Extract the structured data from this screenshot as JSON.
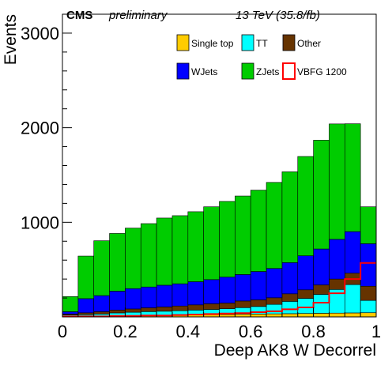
{
  "header": {
    "experiment": "CMS",
    "status": "preliminary",
    "energy_lumi": "13 TeV (35.8/fb)"
  },
  "chart_data": {
    "type": "bar",
    "stacked": true,
    "title": "",
    "xlabel": "Deep AK8 W Decorrel",
    "ylabel": "Events",
    "xlim": [
      0,
      1
    ],
    "ylim": [
      0,
      3200
    ],
    "x_ticks": [
      "0",
      "0.2",
      "0.4",
      "0.6",
      "0.8",
      "1"
    ],
    "y_ticks": [
      "1000",
      "2000",
      "3000"
    ],
    "bin_edges": [
      0,
      0.05,
      0.1,
      0.15,
      0.2,
      0.25,
      0.3,
      0.35,
      0.4,
      0.45,
      0.5,
      0.55,
      0.6,
      0.65,
      0.7,
      0.75,
      0.8,
      0.85,
      0.9,
      0.95,
      1.0
    ],
    "legend_placement": "top-right",
    "series": [
      {
        "name": "Single top",
        "color": "#ffcc00",
        "values": [
          5,
          8,
          10,
          12,
          14,
          16,
          18,
          20,
          22,
          24,
          26,
          28,
          30,
          32,
          34,
          36,
          38,
          40,
          42,
          44
        ]
      },
      {
        "name": "TT",
        "color": "#00ffff",
        "values": [
          15,
          15,
          20,
          30,
          35,
          40,
          42,
          45,
          50,
          55,
          60,
          70,
          80,
          100,
          130,
          160,
          200,
          250,
          300,
          130
        ]
      },
      {
        "name": "Other",
        "color": "#663300",
        "values": [
          10,
          20,
          25,
          30,
          35,
          40,
          45,
          50,
          55,
          60,
          60,
          70,
          70,
          70,
          80,
          90,
          100,
          110,
          120,
          150
        ]
      },
      {
        "name": "WJets",
        "color": "#0000ff",
        "values": [
          25,
          150,
          170,
          200,
          215,
          220,
          230,
          235,
          245,
          255,
          275,
          280,
          300,
          310,
          330,
          360,
          380,
          420,
          440,
          450
        ]
      },
      {
        "name": "ZJets",
        "color": "#00cc00",
        "values": [
          160,
          450,
          580,
          610,
          640,
          670,
          710,
          720,
          740,
          770,
          800,
          830,
          860,
          910,
          960,
          1050,
          1150,
          1220,
          1140,
          390
        ]
      }
    ],
    "signal": {
      "name": "VBFG 1200",
      "color": "#ff0000",
      "values": [
        5,
        5,
        5,
        10,
        10,
        15,
        15,
        20,
        25,
        30,
        35,
        40,
        50,
        60,
        80,
        100,
        150,
        250,
        400,
        570
      ]
    }
  }
}
